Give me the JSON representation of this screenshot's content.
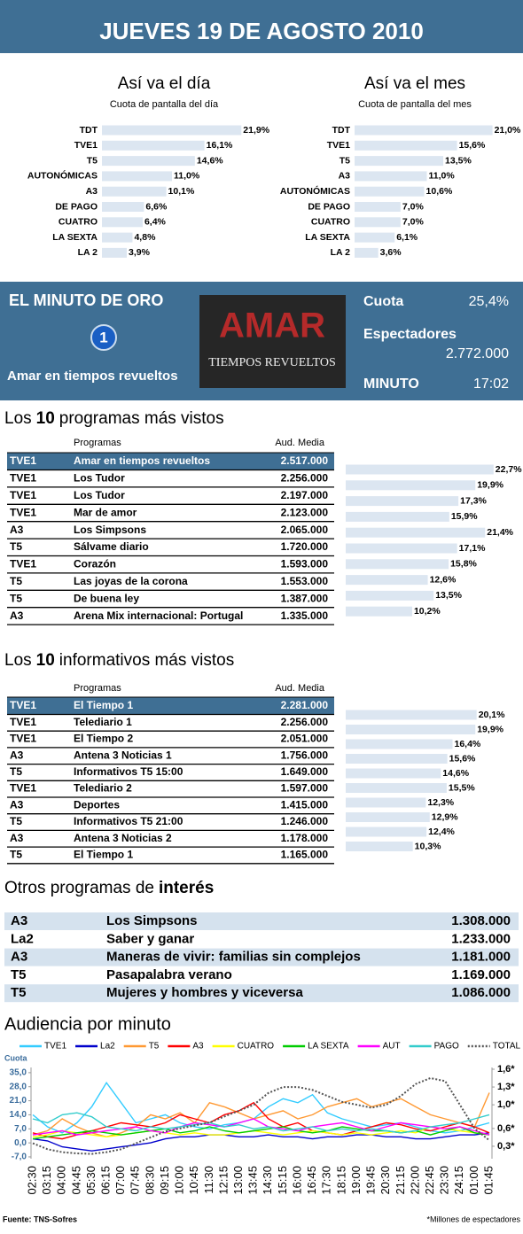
{
  "header": {
    "title": "JUEVES 19 DE AGOSTO 2010"
  },
  "chart_data": [
    {
      "type": "hbar",
      "title": "Así va el día",
      "subtitle": "Cuota de pantalla del día",
      "categories": [
        "TDT",
        "TVE1",
        "T5",
        "AUTONÓMICAS",
        "A3",
        "DE PAGO",
        "CUATRO",
        "LA SEXTA",
        "LA 2"
      ],
      "values": [
        21.9,
        16.1,
        14.6,
        11.0,
        10.1,
        6.6,
        6.4,
        4.8,
        3.9
      ],
      "value_labels": [
        "21,9%",
        "16,1%",
        "14,6%",
        "11,0%",
        "10,1%",
        "6,6%",
        "6,4%",
        "4,8%",
        "3,9%"
      ],
      "color": "#dce6f1",
      "xlim": [
        0,
        22
      ]
    },
    {
      "type": "hbar",
      "title": "Así va el mes",
      "subtitle": "Cuota de pantalla del mes",
      "categories": [
        "TDT",
        "TVE1",
        "T5",
        "A3",
        "AUTONÓMICAS",
        "DE PAGO",
        "CUATRO",
        "LA SEXTA",
        "LA 2"
      ],
      "values": [
        21.0,
        15.6,
        13.5,
        11.0,
        10.6,
        7.0,
        7.0,
        6.1,
        3.6
      ],
      "value_labels": [
        "21,0%",
        "15,6%",
        "13,5%",
        "11,0%",
        "10,6%",
        "7,0%",
        "7,0%",
        "6,1%",
        "3,6%"
      ],
      "color": "#dce6f1",
      "xlim": [
        0,
        22
      ]
    },
    {
      "type": "hbar",
      "values": [
        22.7,
        19.9,
        17.3,
        15.9,
        21.4,
        17.1,
        15.8,
        12.6,
        13.5,
        10.2
      ],
      "value_labels": [
        "22,7%",
        "19,9%",
        "17,3%",
        "15,9%",
        "21,4%",
        "17,1%",
        "15,8%",
        "12,6%",
        "13,5%",
        "10,2%"
      ],
      "color": "#dce6f1",
      "xlim": [
        0,
        23
      ]
    },
    {
      "type": "hbar",
      "values": [
        20.1,
        19.9,
        16.4,
        15.6,
        14.6,
        15.5,
        12.3,
        12.9,
        12.4,
        10.3
      ],
      "value_labels": [
        "20,1%",
        "19,9%",
        "16,4%",
        "15,6%",
        "14,6%",
        "15,5%",
        "12,3%",
        "12,9%",
        "12,4%",
        "10,3%"
      ],
      "color": "#dce6f1",
      "xlim": [
        0,
        23
      ]
    },
    {
      "type": "line",
      "title": "Audiencia por minuto",
      "ylabel": "Cuota",
      "x": [
        "02:30",
        "03:15",
        "04:00",
        "04:45",
        "05:30",
        "06:15",
        "07:00",
        "07:45",
        "08:30",
        "09:15",
        "10:00",
        "10:45",
        "11:30",
        "12:15",
        "13:00",
        "13:45",
        "14:30",
        "15:15",
        "16:00",
        "16:45",
        "17:30",
        "18:15",
        "19:00",
        "19:45",
        "20:30",
        "21:15",
        "22:00",
        "22:45",
        "23:30",
        "24:15",
        "01:00",
        "01:45"
      ],
      "ylim": [
        -7.9,
        37.6
      ],
      "yticks": [
        {
          "value": 35,
          "label": "35,0"
        },
        {
          "value": 28,
          "label": "28,0"
        },
        {
          "value": 21,
          "label": "21,0"
        },
        {
          "value": 14,
          "label": "14,0"
        },
        {
          "value": 7,
          "label": "7,0"
        },
        {
          "value": 0,
          "label": "0,0"
        },
        {
          "value": -7,
          "label": "-7,0"
        }
      ],
      "y2lim": [
        0.09,
        1.63
      ],
      "y2ticks": [
        {
          "value": 1.6,
          "label": "1,6*"
        },
        {
          "value": 1.3,
          "label": "1,3*"
        },
        {
          "value": 1.0,
          "label": "1,0*"
        },
        {
          "value": 0.6,
          "label": "0,6*"
        },
        {
          "value": 0.3,
          "label": "0,3*"
        }
      ],
      "series": [
        {
          "name": "TVE1",
          "color": "#33ccff",
          "values": [
            14,
            8,
            5,
            10,
            18,
            30,
            20,
            10,
            12,
            14,
            10,
            8,
            7,
            9,
            10,
            12,
            18,
            22,
            20,
            24,
            15,
            12,
            10,
            8,
            9,
            10,
            8,
            6,
            5,
            6,
            8,
            10
          ]
        },
        {
          "name": "La2",
          "color": "#0000cc",
          "values": [
            2,
            1,
            -2,
            -3,
            -4,
            -3,
            -2,
            -1,
            0,
            2,
            3,
            3,
            4,
            4,
            3,
            3,
            4,
            3,
            3,
            2,
            3,
            3,
            4,
            4,
            3,
            3,
            2,
            2,
            3,
            4,
            4,
            5
          ]
        },
        {
          "name": "T5",
          "color": "#ff9933",
          "values": [
            4,
            6,
            12,
            8,
            5,
            3,
            5,
            8,
            14,
            12,
            15,
            10,
            20,
            18,
            15,
            12,
            14,
            16,
            12,
            14,
            18,
            20,
            22,
            18,
            20,
            22,
            18,
            14,
            12,
            10,
            8,
            25
          ]
        },
        {
          "name": "A3",
          "color": "#ff0000",
          "values": [
            5,
            3,
            2,
            4,
            6,
            8,
            10,
            9,
            8,
            10,
            14,
            12,
            10,
            14,
            16,
            20,
            12,
            8,
            10,
            6,
            5,
            4,
            6,
            8,
            10,
            9,
            7,
            6,
            8,
            10,
            8,
            5
          ]
        },
        {
          "name": "CUATRO",
          "color": "#ffff00",
          "values": [
            3,
            4,
            6,
            5,
            4,
            3,
            4,
            5,
            6,
            5,
            4,
            5,
            4,
            4,
            5,
            6,
            5,
            4,
            5,
            6,
            5,
            4,
            5,
            4,
            5,
            6,
            5,
            8,
            7,
            6,
            5,
            4
          ]
        },
        {
          "name": "LA SEXTA",
          "color": "#00cc00",
          "values": [
            2,
            3,
            4,
            5,
            6,
            5,
            4,
            5,
            6,
            7,
            5,
            6,
            8,
            6,
            5,
            6,
            7,
            8,
            6,
            5,
            6,
            8,
            7,
            6,
            6,
            5,
            6,
            4,
            6,
            8,
            5,
            4
          ]
        },
        {
          "name": "AUT",
          "color": "#ff00ff",
          "values": [
            4,
            5,
            6,
            4,
            5,
            6,
            7,
            8,
            6,
            5,
            8,
            10,
            9,
            8,
            10,
            12,
            8,
            7,
            6,
            8,
            9,
            10,
            8,
            6,
            8,
            10,
            9,
            8,
            7,
            8,
            6,
            4
          ]
        },
        {
          "name": "PAGO",
          "color": "#33cccc",
          "values": [
            12,
            10,
            14,
            15,
            13,
            8,
            7,
            6,
            8,
            7,
            8,
            9,
            10,
            8,
            9,
            7,
            8,
            6,
            7,
            8,
            6,
            7,
            6,
            7,
            6,
            5,
            6,
            8,
            9,
            10,
            12,
            14
          ]
        },
        {
          "name": "TOTAL",
          "color": "#555555",
          "dash": "dotted",
          "axis": "y2",
          "values": [
            0.35,
            0.25,
            0.2,
            0.18,
            0.17,
            0.2,
            0.25,
            0.35,
            0.45,
            0.55,
            0.6,
            0.65,
            0.7,
            0.8,
            0.9,
            1.0,
            1.2,
            1.3,
            1.3,
            1.25,
            1.15,
            1.05,
            1.0,
            0.95,
            1.0,
            1.15,
            1.35,
            1.45,
            1.4,
            1.0,
            0.6,
            0.4
          ]
        }
      ]
    }
  ],
  "golden_minute": {
    "title": "EL MINUTO DE ORO",
    "channel_logo": "1",
    "program": "Amar en tiempos revueltos",
    "image_title": "AMAR",
    "image_subtitle": "TIEMPOS REVUELTOS",
    "share_label": "Cuota",
    "share": "25,4%",
    "viewers_label": "Espectadores",
    "viewers": "2.772.000",
    "minute_label": "MINUTO",
    "minute": "17:02"
  },
  "top_programs": {
    "heading": {
      "prefix": "Los",
      "number": "10",
      "suffix": "programas más vistos"
    },
    "columns": [
      "Programas",
      "Aud. Media"
    ],
    "rows": [
      [
        "TVE1",
        "Amar en tiempos revueltos",
        "2.517.000"
      ],
      [
        "TVE1",
        "Los Tudor",
        "2.256.000"
      ],
      [
        "TVE1",
        "Los Tudor",
        "2.197.000"
      ],
      [
        "TVE1",
        "Mar de amor",
        "2.123.000"
      ],
      [
        "A3",
        "Los Simpsons",
        "2.065.000"
      ],
      [
        "T5",
        "Sálvame diario",
        "1.720.000"
      ],
      [
        "TVE1",
        "Corazón",
        "1.593.000"
      ],
      [
        "T5",
        "Las joyas de la corona",
        "1.553.000"
      ],
      [
        "T5",
        "De buena ley",
        "1.387.000"
      ],
      [
        "A3",
        "Arena Mix internacional: Portugal",
        "1.335.000"
      ]
    ]
  },
  "top_news": {
    "heading": {
      "prefix": "Los",
      "number": "10",
      "suffix": "informativos más vistos"
    },
    "columns": [
      "Programas",
      "Aud. Media"
    ],
    "rows": [
      [
        "TVE1",
        "El Tiempo 1",
        "2.281.000"
      ],
      [
        "TVE1",
        "Telediario 1",
        "2.256.000"
      ],
      [
        "TVE1",
        "El Tiempo 2",
        "2.051.000"
      ],
      [
        "A3",
        "Antena 3 Noticias 1",
        "1.756.000"
      ],
      [
        "T5",
        "Informativos T5 15:00",
        "1.649.000"
      ],
      [
        "TVE1",
        "Telediario 2",
        "1.597.000"
      ],
      [
        "A3",
        "Deportes",
        "1.415.000"
      ],
      [
        "T5",
        "Informativos T5 21:00",
        "1.246.000"
      ],
      [
        "A3",
        "Antena 3 Noticias 2",
        "1.178.000"
      ],
      [
        "T5",
        "El Tiempo 1",
        "1.165.000"
      ]
    ]
  },
  "other_programs": {
    "heading": {
      "text": "Otros programas de",
      "emphasis": "interés"
    },
    "rows": [
      [
        "A3",
        "Los Simpsons",
        "1.308.000"
      ],
      [
        "La2",
        "Saber y ganar",
        "1.233.000"
      ],
      [
        "A3",
        "Maneras de vivir: familias sin complejos",
        "1.181.000"
      ],
      [
        "T5",
        "Pasapalabra verano",
        "1.169.000"
      ],
      [
        "T5",
        "Mujeres y hombres y viceversa",
        "1.086.000"
      ]
    ]
  },
  "footer": {
    "source": "Fuente:  TNS-Sofres",
    "note": "*Millones de espectadores"
  }
}
